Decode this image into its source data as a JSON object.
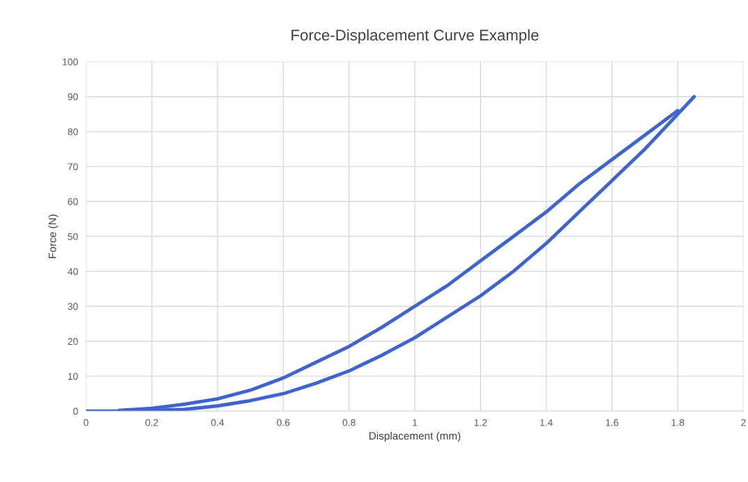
{
  "chart_data": {
    "type": "line",
    "title": "Force-Displacement Curve Example",
    "xlabel": "Displacement (mm)",
    "ylabel": "Force (N)",
    "series": [
      {
        "color": "#3f63cf",
        "x": [
          0,
          0.1,
          0.2,
          0.3,
          0.4,
          0.5,
          0.6,
          0.7,
          0.8,
          0.9,
          1.0,
          1.1,
          1.2,
          1.3,
          1.4,
          1.5,
          1.6,
          1.7,
          1.8,
          1.85
        ],
        "values": [
          0,
          0,
          0.2,
          0.5,
          1.5,
          3,
          5,
          8,
          11.5,
          16,
          21,
          27,
          33,
          40,
          48,
          57,
          66,
          75,
          85,
          90
        ]
      },
      {
        "color": "#3f63cf",
        "x": [
          0.1,
          0.2,
          0.3,
          0.4,
          0.5,
          0.6,
          0.7,
          0.8,
          0.9,
          1.0,
          1.1,
          1.2,
          1.3,
          1.4,
          1.5,
          1.6,
          1.7,
          1.8
        ],
        "values": [
          0.2,
          0.8,
          2,
          3.5,
          6,
          9.5,
          14,
          18.5,
          24,
          30,
          36,
          43,
          50,
          57,
          65,
          72,
          79,
          86
        ]
      }
    ],
    "xlim": [
      0,
      2
    ],
    "xticks": [
      0,
      0.2,
      0.4,
      0.6,
      0.8,
      1,
      1.2,
      1.4,
      1.6,
      1.8,
      2
    ],
    "ylim": [
      0,
      100
    ],
    "yticks": [
      0,
      10,
      20,
      30,
      40,
      50,
      60,
      70,
      80,
      90,
      100
    ],
    "grid": true,
    "marker": "none",
    "line_style": "solid"
  }
}
